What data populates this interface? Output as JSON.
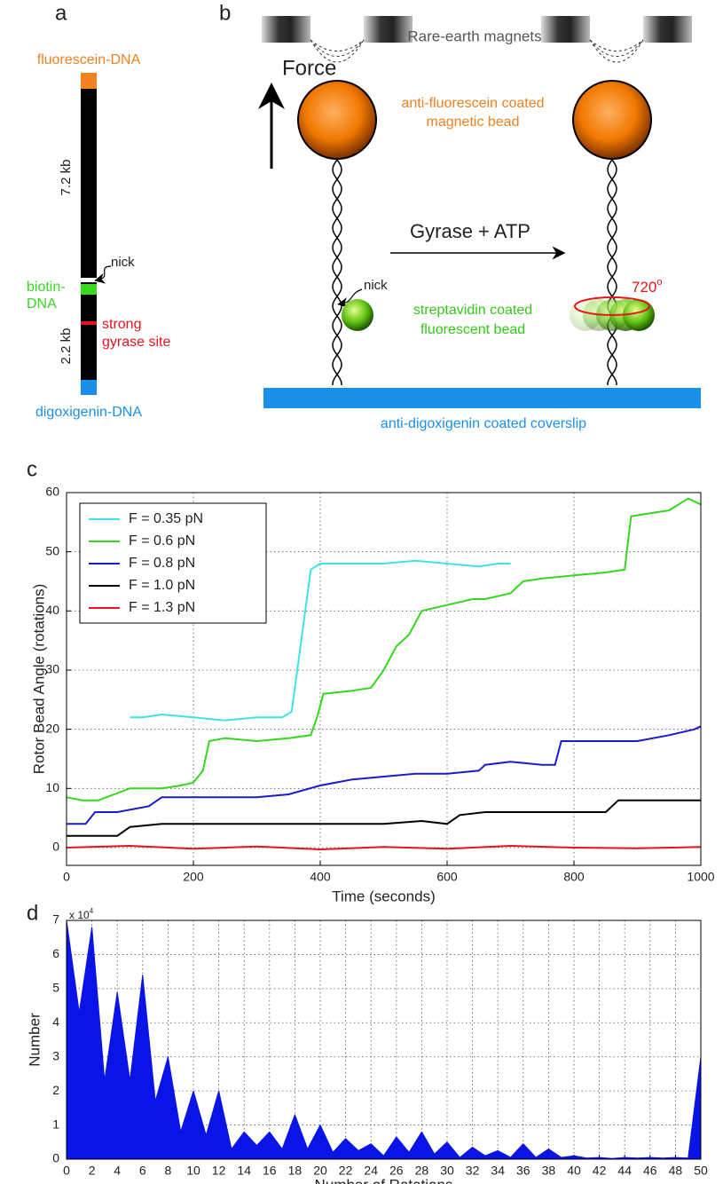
{
  "panel_a": {
    "label": "a",
    "top_label": "fluorescein-DNA",
    "long_length": "7.2 kb",
    "nick": "nick",
    "biotin_line1": "biotin-",
    "biotin_line2": "DNA",
    "short_length": "2.2 kb",
    "site_line1": "strong",
    "site_line2": "gyrase site",
    "bottom_label": "digoxigenin-DNA"
  },
  "panel_b": {
    "label": "b",
    "magnets": "Rare-earth magnets",
    "force": "Force",
    "bead_line1": "anti-fluorescein coated",
    "bead_line2": "magnetic bead",
    "reaction": "Gyrase + ATP",
    "nick": "nick",
    "rotation": "720",
    "rotation_sup": "o",
    "rotor_line1": "streptavidin coated",
    "rotor_line2": "fluorescent bead",
    "coverslip": "anti-digoxigenin coated coverslip"
  },
  "chart_data": [
    {
      "type": "line",
      "panel": "c",
      "xlabel": "Time (seconds)",
      "ylabel": "Rotor Bead Angle (rotations)",
      "xlim": [
        0,
        1000
      ],
      "xticks": [
        0,
        200,
        400,
        600,
        800,
        1000
      ],
      "ylim": [
        -3,
        60
      ],
      "yticks": [
        0,
        10,
        20,
        30,
        40,
        50,
        60
      ],
      "grid": true,
      "legend": "upper left",
      "series": [
        {
          "name": "F = 0.35 pN",
          "color": "#3ee3ea",
          "x": [
            100,
            120,
            150,
            200,
            250,
            300,
            340,
            355,
            370,
            385,
            400,
            450,
            500,
            550,
            600,
            650,
            680,
            700
          ],
          "values": [
            22,
            22,
            22.5,
            22,
            21.5,
            22,
            22,
            23,
            35,
            47,
            48,
            48,
            48,
            48.5,
            48,
            47.5,
            48,
            48
          ]
        },
        {
          "name": "F = 0.6 pN",
          "color": "#35d81e",
          "x": [
            0,
            25,
            50,
            75,
            100,
            150,
            180,
            200,
            215,
            225,
            250,
            300,
            350,
            385,
            395,
            405,
            450,
            480,
            500,
            520,
            540,
            560,
            600,
            640,
            660,
            700,
            720,
            750,
            800,
            850,
            880,
            890,
            920,
            950,
            980,
            1000
          ],
          "values": [
            8.5,
            8,
            8,
            9,
            10,
            10,
            10.5,
            11,
            13,
            18,
            18.5,
            18,
            18.5,
            19,
            22,
            26,
            26.5,
            27,
            30,
            34,
            36,
            40,
            41,
            42,
            42,
            43,
            45,
            45.5,
            46,
            46.5,
            47,
            56,
            56.5,
            57,
            59,
            58
          ]
        },
        {
          "name": "F = 0.8 pN",
          "color": "#1a1ad0",
          "x": [
            0,
            30,
            45,
            80,
            130,
            150,
            200,
            250,
            300,
            350,
            400,
            450,
            500,
            550,
            600,
            650,
            660,
            700,
            750,
            770,
            780,
            850,
            900,
            950,
            990,
            1000
          ],
          "values": [
            4,
            4,
            6,
            6,
            7,
            8.5,
            8.5,
            8.5,
            8.5,
            9,
            10.5,
            11.5,
            12,
            12.5,
            12.5,
            13,
            14,
            14.5,
            14,
            14,
            18,
            18,
            18,
            19,
            20,
            20.5
          ]
        },
        {
          "name": "F = 1.0 pN",
          "color": "#000000",
          "x": [
            0,
            50,
            80,
            100,
            150,
            200,
            300,
            400,
            500,
            560,
            600,
            620,
            660,
            700,
            800,
            850,
            870,
            920,
            1000
          ],
          "values": [
            2,
            2,
            2,
            3.5,
            4,
            4,
            4,
            4,
            4,
            4.5,
            4,
            5.5,
            6,
            6,
            6,
            6,
            8,
            8,
            8
          ]
        },
        {
          "name": "F = 1.3 pN",
          "color": "#e5141c",
          "x": [
            0,
            100,
            200,
            300,
            400,
            500,
            600,
            700,
            800,
            900,
            1000
          ],
          "values": [
            0,
            0.3,
            -0.2,
            0.2,
            -0.3,
            0.1,
            -0.2,
            0.3,
            0,
            -0.1,
            0.1
          ]
        }
      ]
    },
    {
      "type": "area",
      "panel": "d",
      "xlabel": "Number of Rotations",
      "ylabel": "Number",
      "y_multiplier": "x 10",
      "y_multiplier_exp": "4",
      "xlim": [
        0,
        50
      ],
      "xticks": [
        0,
        2,
        4,
        6,
        8,
        10,
        12,
        14,
        16,
        18,
        20,
        22,
        24,
        26,
        28,
        30,
        32,
        34,
        36,
        38,
        40,
        42,
        44,
        46,
        48,
        50
      ],
      "ylim": [
        0,
        70000
      ],
      "yticks": [
        0,
        {
          "value": 10000,
          "label": "1"
        },
        {
          "value": 20000,
          "label": "2"
        },
        {
          "value": 30000,
          "label": "3"
        },
        {
          "value": 40000,
          "label": "4"
        },
        {
          "value": 50000,
          "label": "5"
        },
        {
          "value": 60000,
          "label": "6"
        },
        {
          "value": 70000,
          "label": "7"
        }
      ],
      "grid": true,
      "color": "#0a14e6",
      "x": [
        0,
        1,
        2,
        3,
        4,
        5,
        6,
        7,
        8,
        9,
        10,
        11,
        12,
        13,
        14,
        15,
        16,
        17,
        18,
        19,
        20,
        21,
        22,
        23,
        24,
        25,
        26,
        27,
        28,
        29,
        30,
        31,
        32,
        33,
        34,
        35,
        36,
        37,
        38,
        39,
        40,
        41,
        42,
        43,
        44,
        45,
        46,
        47,
        48,
        49,
        50
      ],
      "values": [
        70000,
        43000,
        68000,
        23000,
        49000,
        23000,
        54000,
        17000,
        30000,
        8000,
        20000,
        7000,
        20000,
        3000,
        8000,
        4000,
        8000,
        3000,
        13000,
        3000,
        10000,
        2000,
        6000,
        2500,
        4500,
        1000,
        6500,
        2000,
        8000,
        1500,
        5000,
        500,
        3500,
        1000,
        2500,
        500,
        4500,
        500,
        3000,
        500,
        1000,
        300,
        500,
        200,
        500,
        300,
        500,
        300,
        500,
        300,
        30000
      ]
    }
  ]
}
